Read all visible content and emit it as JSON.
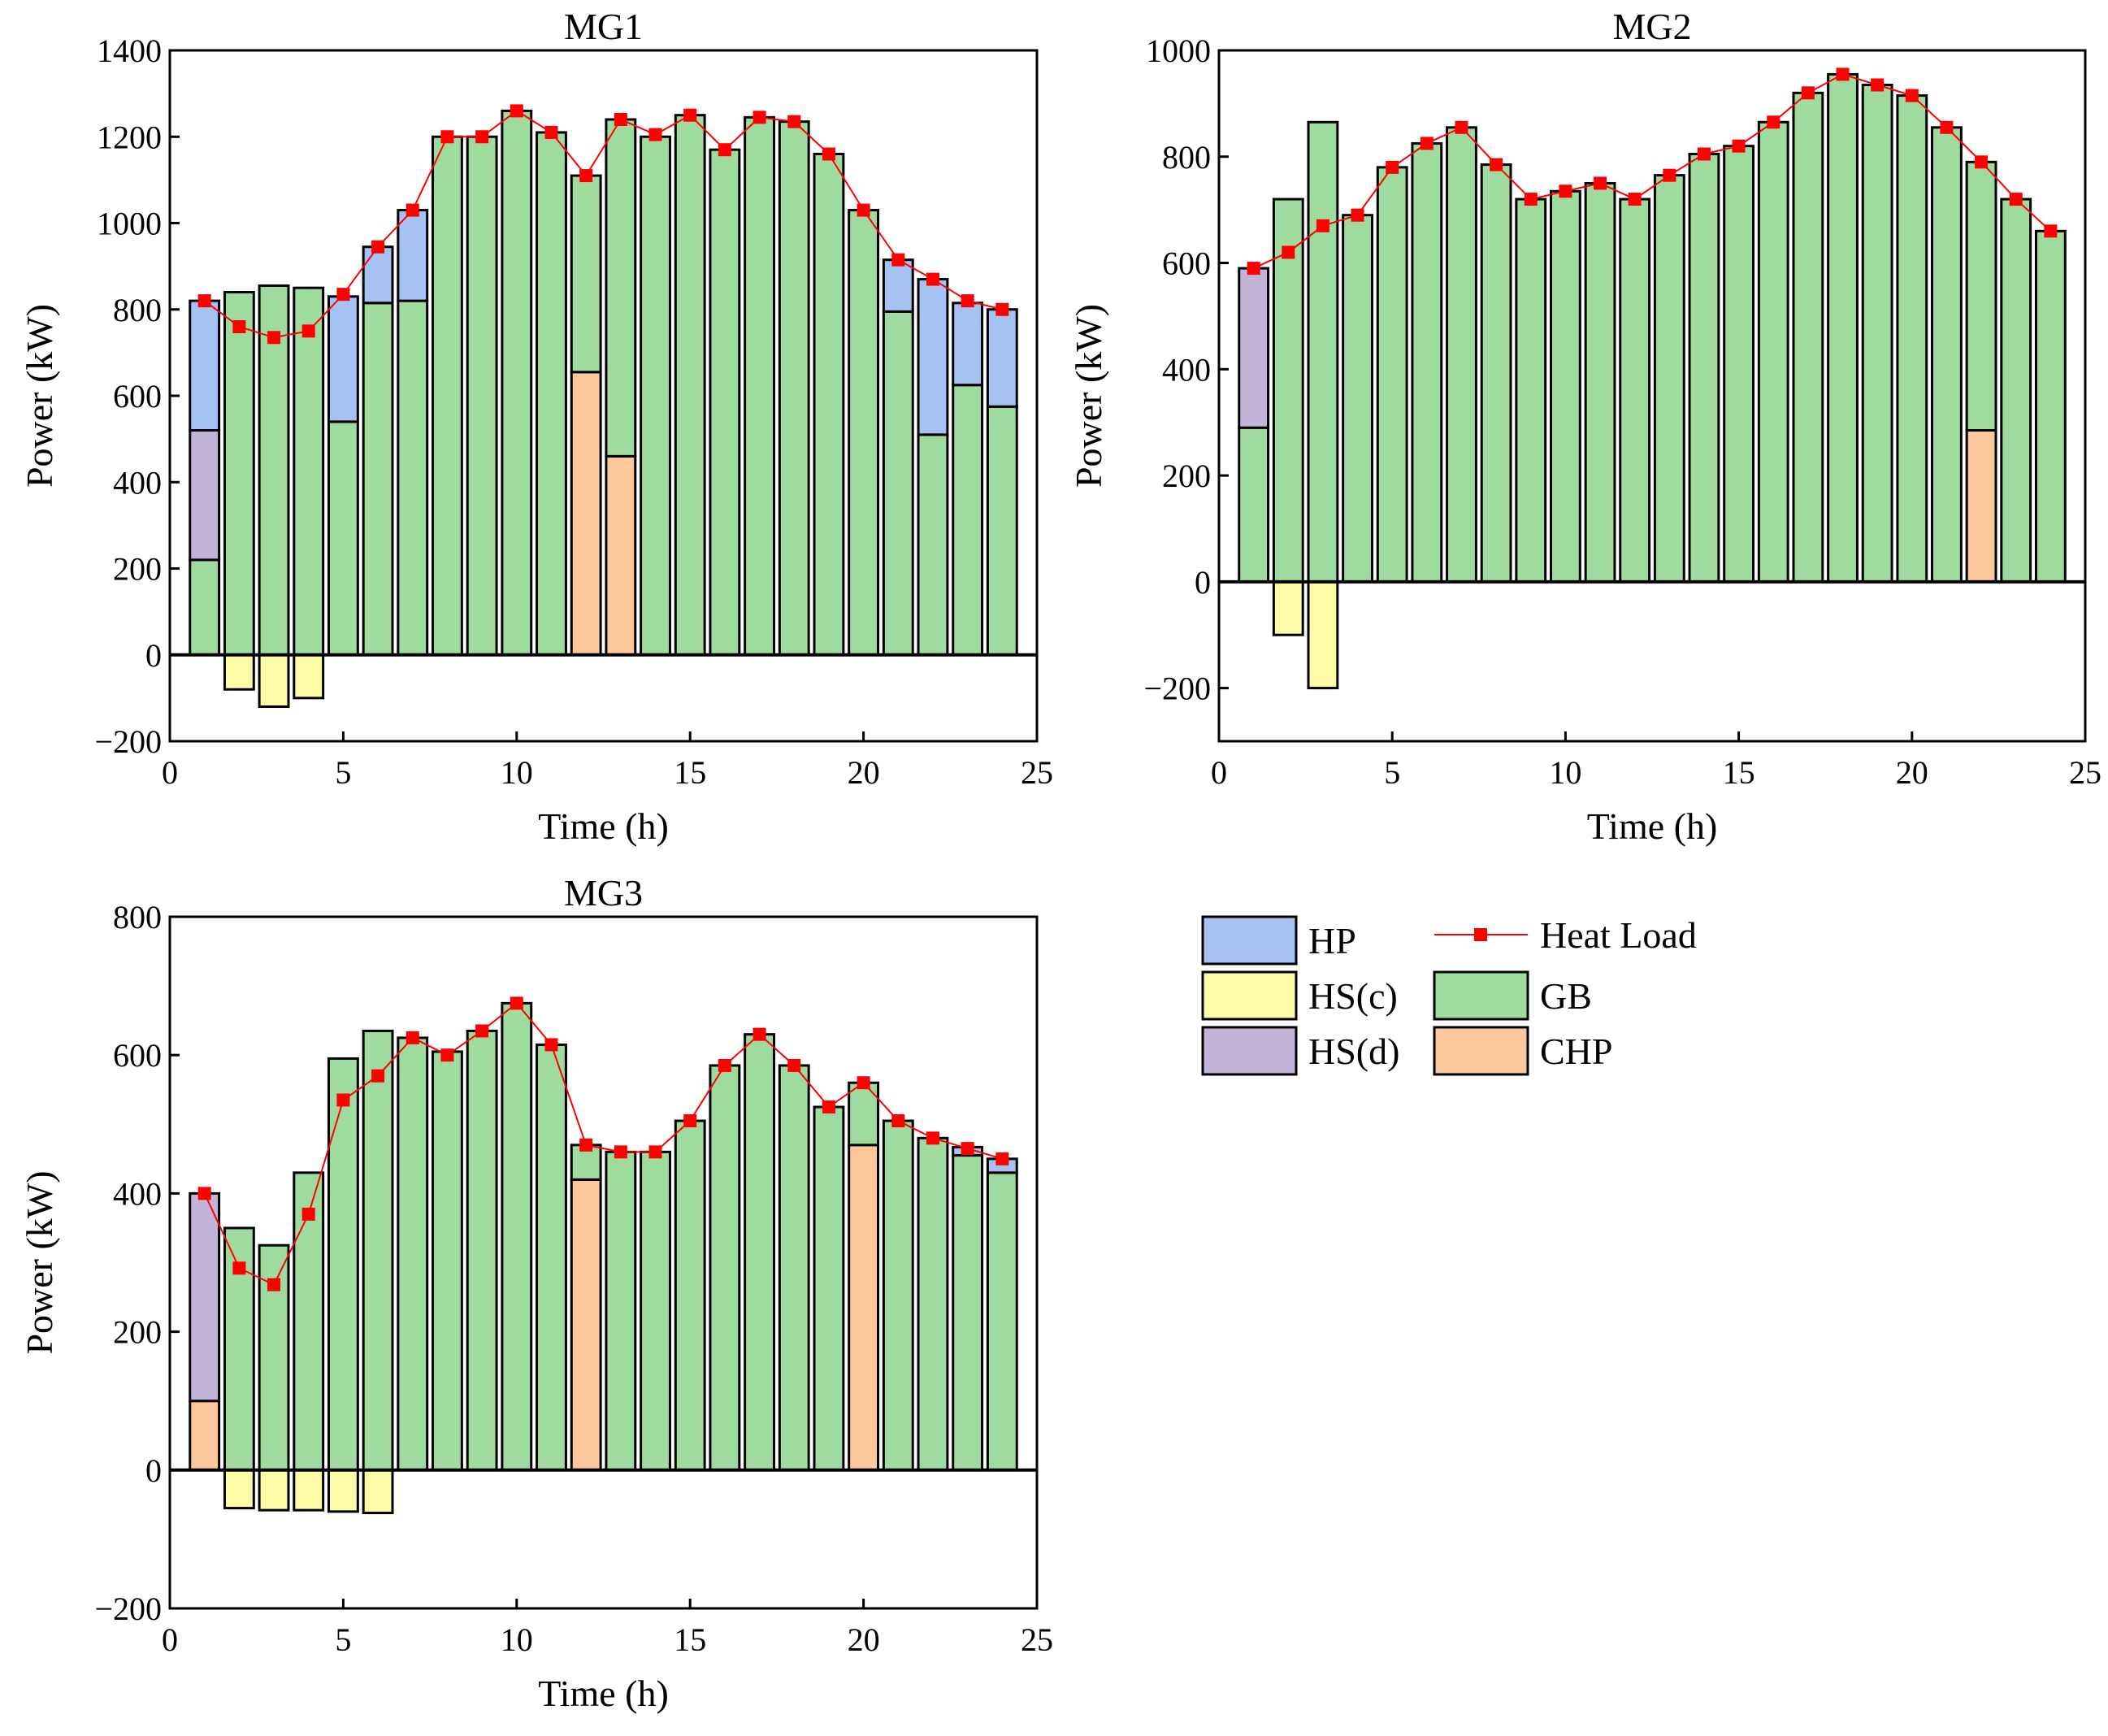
{
  "colors": {
    "HP": "#a4c3f2",
    "HS(c)": "#fdfca6",
    "HS(d)": "#c2b3d8",
    "GB": "#9fdb9e",
    "CHP": "#fcc79b",
    "heat_load": "#ff0000"
  },
  "legend": {
    "items": [
      {
        "key": "HP",
        "label": "HP",
        "kind": "bar"
      },
      {
        "key": "HS(c)",
        "label": "HS(c)",
        "kind": "bar"
      },
      {
        "key": "HS(d)",
        "label": "HS(d)",
        "kind": "bar"
      },
      {
        "key": "heat_load",
        "label": "Heat Load",
        "kind": "line"
      },
      {
        "key": "GB",
        "label": "GB",
        "kind": "bar"
      },
      {
        "key": "CHP",
        "label": "CHP",
        "kind": "bar"
      }
    ]
  },
  "chart_data": [
    {
      "type": "bar",
      "stacked": true,
      "title": "MG1",
      "xlabel": "Time (h)",
      "ylabel": "Power (kW)",
      "xlim": [
        0,
        25
      ],
      "ylim": [
        -200,
        1400
      ],
      "xticks": [
        0,
        5,
        10,
        15,
        20,
        25
      ],
      "yticks": [
        -200,
        0,
        200,
        400,
        600,
        800,
        1000,
        1200,
        1400
      ],
      "x": [
        1,
        2,
        3,
        4,
        5,
        6,
        7,
        8,
        9,
        10,
        11,
        12,
        13,
        14,
        15,
        16,
        17,
        18,
        19,
        20,
        21,
        22,
        23,
        24
      ],
      "series": [
        {
          "name": "CHP",
          "values": [
            0,
            0,
            0,
            0,
            0,
            0,
            0,
            0,
            0,
            0,
            0,
            655,
            460,
            0,
            0,
            0,
            0,
            0,
            0,
            0,
            0,
            0,
            0,
            0
          ]
        },
        {
          "name": "GB",
          "values": [
            220,
            840,
            855,
            850,
            540,
            815,
            820,
            1200,
            1200,
            1260,
            1210,
            455,
            780,
            1200,
            1250,
            1170,
            1245,
            1235,
            1160,
            1030,
            795,
            510,
            625,
            575
          ]
        },
        {
          "name": "HS(d)",
          "values": [
            300,
            0,
            0,
            0,
            0,
            0,
            0,
            0,
            0,
            0,
            0,
            0,
            0,
            0,
            0,
            0,
            0,
            0,
            0,
            0,
            0,
            0,
            0,
            0
          ]
        },
        {
          "name": "HP",
          "values": [
            300,
            0,
            0,
            0,
            290,
            130,
            210,
            0,
            0,
            0,
            0,
            0,
            0,
            0,
            0,
            0,
            0,
            0,
            0,
            0,
            120,
            360,
            190,
            225
          ]
        },
        {
          "name": "HS(c)",
          "values": [
            0,
            -80,
            -120,
            -100,
            0,
            0,
            0,
            0,
            0,
            0,
            0,
            0,
            0,
            0,
            0,
            0,
            0,
            0,
            0,
            0,
            0,
            0,
            0,
            0
          ]
        }
      ],
      "heat_load": [
        820,
        760,
        735,
        750,
        835,
        945,
        1030,
        1200,
        1200,
        1260,
        1210,
        1110,
        1240,
        1205,
        1250,
        1170,
        1245,
        1235,
        1160,
        1030,
        915,
        870,
        820,
        800
      ]
    },
    {
      "type": "bar",
      "stacked": true,
      "title": "MG2",
      "xlabel": "Time (h)",
      "ylabel": "Power (kW)",
      "xlim": [
        0,
        25
      ],
      "ylim": [
        -300,
        1000
      ],
      "xticks": [
        0,
        5,
        10,
        15,
        20,
        25
      ],
      "yticks": [
        -200,
        0,
        200,
        400,
        600,
        800,
        1000
      ],
      "x": [
        1,
        2,
        3,
        4,
        5,
        6,
        7,
        8,
        9,
        10,
        11,
        12,
        13,
        14,
        15,
        16,
        17,
        18,
        19,
        20,
        21,
        22,
        23,
        24
      ],
      "series": [
        {
          "name": "CHP",
          "values": [
            0,
            0,
            0,
            0,
            0,
            0,
            0,
            0,
            0,
            0,
            0,
            0,
            0,
            0,
            0,
            0,
            0,
            0,
            0,
            0,
            0,
            285,
            0,
            0
          ]
        },
        {
          "name": "GB",
          "values": [
            290,
            720,
            865,
            690,
            780,
            825,
            855,
            785,
            720,
            735,
            750,
            720,
            765,
            805,
            820,
            865,
            920,
            955,
            935,
            915,
            855,
            505,
            720,
            660
          ]
        },
        {
          "name": "HS(d)",
          "values": [
            300,
            0,
            0,
            0,
            0,
            0,
            0,
            0,
            0,
            0,
            0,
            0,
            0,
            0,
            0,
            0,
            0,
            0,
            0,
            0,
            0,
            0,
            0,
            0
          ]
        },
        {
          "name": "HP",
          "values": [
            0,
            0,
            0,
            0,
            0,
            0,
            0,
            0,
            0,
            0,
            0,
            0,
            0,
            0,
            0,
            0,
            0,
            0,
            0,
            0,
            0,
            0,
            0,
            0
          ]
        },
        {
          "name": "HS(c)",
          "values": [
            0,
            -100,
            -200,
            0,
            0,
            0,
            0,
            0,
            0,
            0,
            0,
            0,
            0,
            0,
            0,
            0,
            0,
            0,
            0,
            0,
            0,
            0,
            0,
            0
          ]
        }
      ],
      "heat_load": [
        590,
        620,
        670,
        690,
        780,
        825,
        855,
        785,
        720,
        735,
        750,
        720,
        765,
        805,
        820,
        865,
        920,
        955,
        935,
        915,
        855,
        790,
        720,
        660
      ]
    },
    {
      "type": "bar",
      "stacked": true,
      "title": "MG3",
      "xlabel": "Time (h)",
      "ylabel": "Power (kW)",
      "xlim": [
        0,
        25
      ],
      "ylim": [
        -200,
        800
      ],
      "xticks": [
        0,
        5,
        10,
        15,
        20,
        25
      ],
      "yticks": [
        -200,
        0,
        200,
        400,
        600,
        800
      ],
      "x": [
        1,
        2,
        3,
        4,
        5,
        6,
        7,
        8,
        9,
        10,
        11,
        12,
        13,
        14,
        15,
        16,
        17,
        18,
        19,
        20,
        21,
        22,
        23,
        24
      ],
      "series": [
        {
          "name": "CHP",
          "values": [
            100,
            0,
            0,
            0,
            0,
            0,
            0,
            0,
            0,
            0,
            0,
            420,
            0,
            0,
            0,
            0,
            0,
            0,
            0,
            470,
            0,
            0,
            0,
            0
          ]
        },
        {
          "name": "GB",
          "values": [
            0,
            350,
            325,
            430,
            595,
            635,
            625,
            605,
            635,
            675,
            615,
            50,
            460,
            460,
            505,
            585,
            630,
            585,
            525,
            90,
            505,
            480,
            455,
            430
          ]
        },
        {
          "name": "HS(d)",
          "values": [
            300,
            0,
            0,
            0,
            0,
            0,
            0,
            0,
            0,
            0,
            0,
            0,
            0,
            0,
            0,
            0,
            0,
            0,
            0,
            0,
            0,
            0,
            0,
            0
          ]
        },
        {
          "name": "HP",
          "values": [
            0,
            0,
            0,
            0,
            0,
            0,
            0,
            0,
            0,
            0,
            0,
            0,
            0,
            0,
            0,
            0,
            0,
            0,
            0,
            0,
            0,
            0,
            12,
            20
          ]
        },
        {
          "name": "HS(c)",
          "values": [
            0,
            -55,
            -58,
            -58,
            -60,
            -62,
            0,
            0,
            0,
            0,
            0,
            0,
            0,
            0,
            0,
            0,
            0,
            0,
            0,
            0,
            0,
            0,
            0,
            0
          ]
        }
      ],
      "heat_load": [
        400,
        292,
        268,
        370,
        535,
        570,
        625,
        600,
        635,
        675,
        615,
        470,
        460,
        460,
        505,
        585,
        630,
        585,
        525,
        560,
        505,
        480,
        465,
        450
      ]
    }
  ]
}
